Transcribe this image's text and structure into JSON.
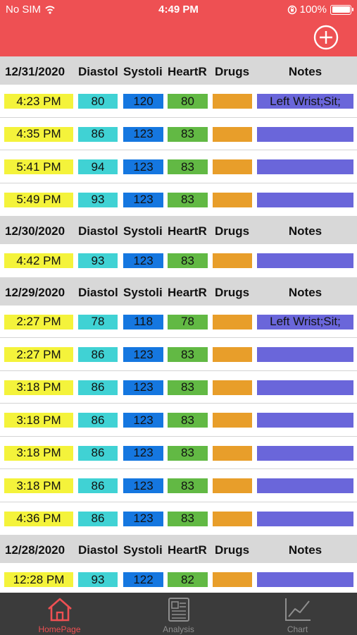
{
  "status_bar": {
    "carrier": "No SIM",
    "time": "4:49 PM",
    "battery_percent": "100%"
  },
  "columns": {
    "diastolic": "Diastol",
    "systolic": "Systoli",
    "heart_rate": "HeartR",
    "drugs": "Drugs",
    "notes": "Notes"
  },
  "colors": {
    "header": "#ee5053",
    "time": "#f4f33b",
    "diastolic": "#40d2d4",
    "systolic": "#1577e0",
    "heart_rate": "#62b944",
    "drugs": "#e89e2a",
    "notes": "#6a66da",
    "tab_bar": "#3b3b3b"
  },
  "sections": [
    {
      "date": "12/31/2020",
      "rows": [
        {
          "time": "4:23 PM",
          "diastolic": "80",
          "systolic": "120",
          "heart_rate": "80",
          "drugs": "",
          "notes": "Left Wrist;Sit;"
        },
        {
          "time": "4:35 PM",
          "diastolic": "86",
          "systolic": "123",
          "heart_rate": "83",
          "drugs": "",
          "notes": ""
        },
        {
          "time": "5:41 PM",
          "diastolic": "94",
          "systolic": "123",
          "heart_rate": "83",
          "drugs": "",
          "notes": ""
        },
        {
          "time": "5:49 PM",
          "diastolic": "93",
          "systolic": "123",
          "heart_rate": "83",
          "drugs": "",
          "notes": ""
        }
      ]
    },
    {
      "date": "12/30/2020",
      "rows": [
        {
          "time": "4:42 PM",
          "diastolic": "93",
          "systolic": "123",
          "heart_rate": "83",
          "drugs": "",
          "notes": ""
        }
      ]
    },
    {
      "date": "12/29/2020",
      "rows": [
        {
          "time": "2:27 PM",
          "diastolic": "78",
          "systolic": "118",
          "heart_rate": "78",
          "drugs": "",
          "notes": "Left Wrist;Sit;"
        },
        {
          "time": "2:27 PM",
          "diastolic": "86",
          "systolic": "123",
          "heart_rate": "83",
          "drugs": "",
          "notes": ""
        },
        {
          "time": "3:18 PM",
          "diastolic": "86",
          "systolic": "123",
          "heart_rate": "83",
          "drugs": "",
          "notes": ""
        },
        {
          "time": "3:18 PM",
          "diastolic": "86",
          "systolic": "123",
          "heart_rate": "83",
          "drugs": "",
          "notes": ""
        },
        {
          "time": "3:18 PM",
          "diastolic": "86",
          "systolic": "123",
          "heart_rate": "83",
          "drugs": "",
          "notes": ""
        },
        {
          "time": "3:18 PM",
          "diastolic": "86",
          "systolic": "123",
          "heart_rate": "83",
          "drugs": "",
          "notes": ""
        },
        {
          "time": "4:36 PM",
          "diastolic": "86",
          "systolic": "123",
          "heart_rate": "83",
          "drugs": "",
          "notes": ""
        }
      ]
    },
    {
      "date": "12/28/2020",
      "rows": [
        {
          "time": "12:28 PM",
          "diastolic": "93",
          "systolic": "122",
          "heart_rate": "82",
          "drugs": "",
          "notes": ""
        }
      ]
    }
  ],
  "tabs": [
    {
      "label": "HomePage",
      "icon": "home-icon",
      "active": true
    },
    {
      "label": "Analysis",
      "icon": "analysis-icon",
      "active": false
    },
    {
      "label": "Chart",
      "icon": "chart-icon",
      "active": false
    }
  ]
}
